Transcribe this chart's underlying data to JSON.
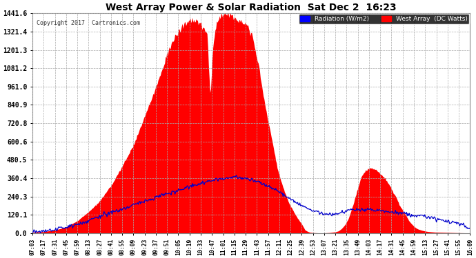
{
  "title": "West Array Power & Solar Radiation  Sat Dec 2  16:23",
  "copyright": "Copyright 2017  Cartronics.com",
  "legend_radiation": "Radiation (W/m2)",
  "legend_west": "West Array  (DC Watts)",
  "yticks": [
    0.0,
    120.1,
    240.3,
    360.4,
    480.5,
    600.6,
    720.8,
    840.9,
    961.0,
    1081.2,
    1201.3,
    1321.4,
    1441.6
  ],
  "ymax": 1441.6,
  "bg_color": "#ffffff",
  "plot_bg_color": "#ffffff",
  "grid_color": "#aaaaaa",
  "fill_color": "#ff0000",
  "line_color": "#0000cc",
  "xtick_labels": [
    "07:03",
    "07:17",
    "07:31",
    "07:45",
    "07:59",
    "08:13",
    "08:27",
    "08:41",
    "08:55",
    "09:09",
    "09:23",
    "09:37",
    "09:51",
    "10:05",
    "10:19",
    "10:33",
    "10:47",
    "11:01",
    "11:15",
    "11:29",
    "11:43",
    "11:57",
    "12:11",
    "12:25",
    "12:39",
    "12:53",
    "13:07",
    "13:21",
    "13:35",
    "13:49",
    "14:03",
    "14:17",
    "14:31",
    "14:45",
    "14:59",
    "15:13",
    "15:27",
    "15:41",
    "15:55",
    "16:09"
  ],
  "west_data_x": [
    7.05,
    7.28,
    7.52,
    7.75,
    7.98,
    8.22,
    8.45,
    8.68,
    8.92,
    9.15,
    9.38,
    9.62,
    9.72,
    9.82,
    9.88,
    9.95,
    10.05,
    10.15,
    10.25,
    10.35,
    10.45,
    10.55,
    10.62,
    10.68,
    10.72,
    10.75,
    10.78,
    10.82,
    10.87,
    10.9,
    10.95,
    11.02,
    11.08,
    11.15,
    11.22,
    11.29,
    11.36,
    11.43,
    11.5,
    11.55,
    11.62,
    11.68,
    11.75,
    11.82,
    11.9,
    11.97,
    12.05,
    12.12,
    12.18,
    12.25,
    12.32,
    12.38,
    12.45,
    12.52,
    12.58,
    12.65,
    12.72,
    12.78,
    12.82,
    12.88,
    12.95,
    13.02,
    13.08,
    13.15,
    13.22,
    13.28,
    13.35,
    13.42,
    13.48,
    13.55,
    13.62,
    13.68,
    13.75,
    13.82,
    13.88,
    13.95,
    14.02,
    14.08,
    14.15,
    14.22,
    14.28,
    14.35,
    14.42,
    14.48,
    14.55,
    14.62,
    14.68,
    14.75,
    14.82,
    14.88,
    14.95,
    15.02,
    15.08,
    15.15,
    15.22,
    15.28,
    15.35,
    15.42,
    15.55,
    15.68,
    15.82,
    15.95,
    16.15
  ],
  "west_data_y": [
    5,
    10,
    20,
    40,
    80,
    140,
    210,
    310,
    440,
    580,
    760,
    960,
    1050,
    1150,
    1200,
    1250,
    1300,
    1350,
    1380,
    1400,
    1390,
    1370,
    1340,
    1310,
    1050,
    880,
    1100,
    1280,
    1360,
    1400,
    1430,
    1441,
    1435,
    1430,
    1420,
    1410,
    1400,
    1390,
    1370,
    1340,
    1300,
    1200,
    1100,
    960,
    820,
    700,
    580,
    460,
    380,
    310,
    250,
    200,
    160,
    120,
    90,
    60,
    20,
    10,
    5,
    3,
    2,
    1,
    1,
    2,
    3,
    5,
    8,
    15,
    30,
    55,
    95,
    150,
    220,
    300,
    360,
    400,
    420,
    430,
    420,
    410,
    390,
    370,
    340,
    310,
    270,
    230,
    185,
    150,
    115,
    80,
    55,
    35,
    25,
    18,
    13,
    10,
    8,
    6,
    5,
    4,
    3,
    2,
    1
  ],
  "rad_data_x": [
    7.05,
    7.28,
    7.52,
    7.75,
    7.98,
    8.22,
    8.45,
    8.68,
    8.92,
    9.15,
    9.38,
    9.62,
    9.85,
    10.08,
    10.32,
    10.55,
    10.78,
    11.02,
    11.25,
    11.48,
    11.72,
    11.95,
    12.18,
    12.42,
    12.65,
    12.88,
    13.12,
    13.35,
    13.58,
    13.82,
    14.05,
    14.28,
    14.52,
    14.75,
    14.98,
    15.22,
    15.45,
    15.68,
    15.92,
    16.15
  ],
  "rad_data_y": [
    5,
    12,
    22,
    38,
    58,
    82,
    108,
    135,
    160,
    185,
    210,
    235,
    258,
    280,
    305,
    325,
    345,
    358,
    368,
    360,
    340,
    305,
    270,
    225,
    180,
    145,
    125,
    125,
    145,
    155,
    155,
    148,
    138,
    128,
    118,
    108,
    95,
    80,
    60,
    30
  ]
}
